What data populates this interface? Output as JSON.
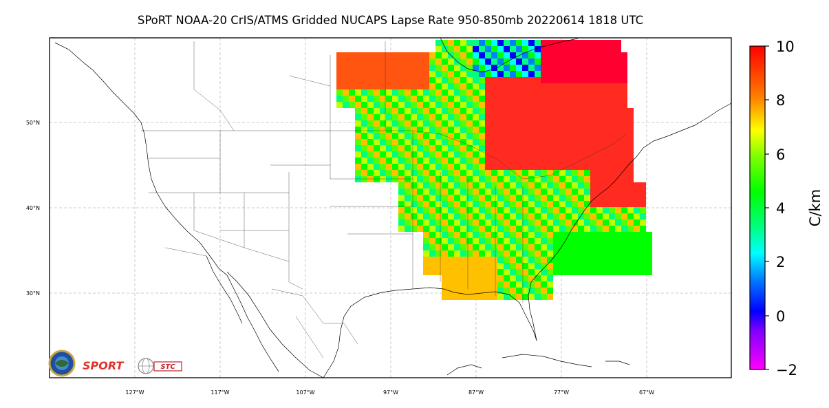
{
  "title": "SPoRT NOAA-20 CrIS/ATMS Gridded NUCAPS Lapse Rate 950-850mb 20220614 1818 UTC",
  "map": {
    "lon_ticks": [
      "127°W",
      "117°W",
      "107°W",
      "97°W",
      "87°W",
      "77°W",
      "67°W"
    ],
    "lat_ticks": [
      "50°N",
      "40°N",
      "30°N"
    ]
  },
  "colorbar": {
    "label": "C/km",
    "ticks": [
      "10",
      "8",
      "6",
      "4",
      "2",
      "0",
      "−2"
    ],
    "min": -2,
    "max": 10
  },
  "logos": {
    "sport_text": "SPORT",
    "stc_text": "STC"
  },
  "colors": {
    "high": "#ff0030",
    "mid": "#00e000",
    "low": "#0000ff",
    "min": "#ff00ff"
  }
}
